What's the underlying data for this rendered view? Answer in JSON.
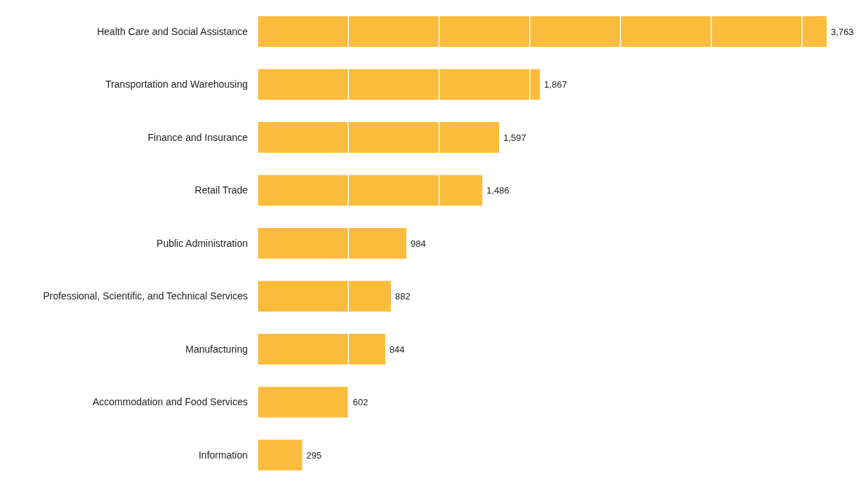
{
  "chart_data": {
    "type": "bar",
    "orientation": "horizontal",
    "categories": [
      "Health Care and Social Assistance",
      "Transportation and Warehousing",
      "Finance and Insurance",
      "Retail Trade",
      "Public Administration",
      "Professional, Scientific, and Technical Services",
      "Manufacturing",
      "Accommodation and Food Services",
      "Information"
    ],
    "values": [
      3763,
      1867,
      1597,
      1486,
      984,
      882,
      844,
      602,
      295
    ],
    "value_labels": [
      "3,763",
      "1,867",
      "1,597",
      "1,486",
      "984",
      "882",
      "844",
      "602",
      "295"
    ],
    "color": "#fbbc3c",
    "xticks": [
      {
        "value": 0,
        "label": null
      },
      {
        "value": 600,
        "label": null
      },
      {
        "value": 1200,
        "label": null
      },
      {
        "value": 1800,
        "label": null
      },
      {
        "value": 2400,
        "label": null
      },
      {
        "value": 3000,
        "label": null
      },
      {
        "value": 3600,
        "label": null
      }
    ],
    "grid": "x",
    "tick_labels": "y"
  }
}
